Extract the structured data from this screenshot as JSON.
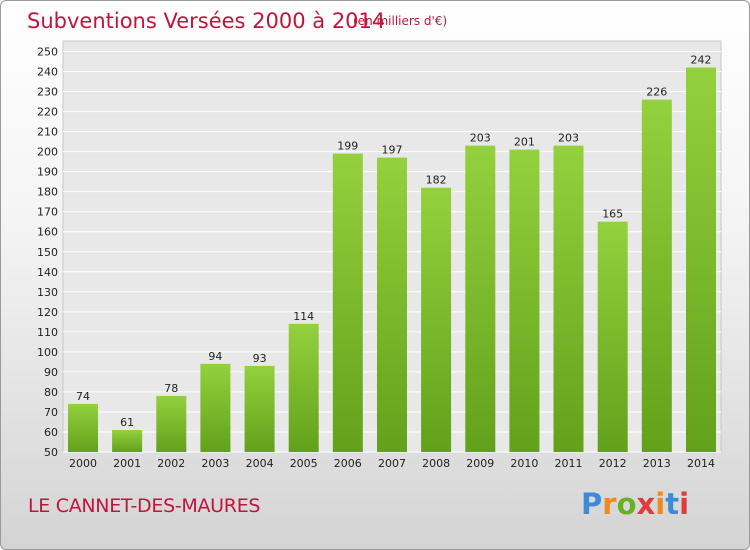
{
  "chart_data": {
    "type": "bar",
    "title": "Subventions Versées 2000 à 2014",
    "subtitle": "(en milliers d'€)",
    "categories": [
      "2000",
      "2001",
      "2002",
      "2003",
      "2004",
      "2005",
      "2006",
      "2007",
      "2008",
      "2009",
      "2010",
      "2011",
      "2012",
      "2013",
      "2014"
    ],
    "values": [
      74,
      61,
      78,
      94,
      93,
      114,
      199,
      197,
      182,
      203,
      201,
      203,
      165,
      226,
      242
    ],
    "ylim": [
      50,
      250
    ],
    "ytick_step": 10,
    "grid": true,
    "xlabel": "",
    "ylabel": "",
    "bar_color": "#78b82a"
  },
  "footer": {
    "commune": "LE CANNET-DES-MAURES"
  },
  "logo": {
    "letters": [
      "P",
      "r",
      "o",
      "x",
      "i",
      "t",
      "i"
    ],
    "colors": [
      "#3d8ad9",
      "#f08a1e",
      "#6ab023",
      "#e23b3b",
      "#f08a1e",
      "#3d8ad9",
      "#e23b3b"
    ]
  }
}
